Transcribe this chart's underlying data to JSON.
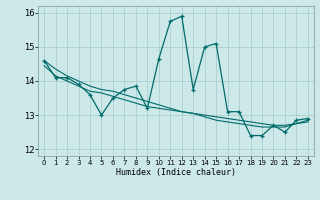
{
  "xlabel": "Humidex (Indice chaleur)",
  "bg_color": "#cce8e8",
  "grid_color": "#aacfcf",
  "line_color": "#006b6b",
  "xlim": [
    -0.5,
    23.5
  ],
  "ylim": [
    11.8,
    16.2
  ],
  "yticks": [
    12,
    13,
    14,
    15,
    16
  ],
  "xticks": [
    0,
    1,
    2,
    3,
    4,
    5,
    6,
    7,
    8,
    9,
    10,
    11,
    12,
    13,
    14,
    15,
    16,
    17,
    18,
    19,
    20,
    21,
    22,
    23
  ],
  "series1": [
    14.6,
    14.1,
    14.1,
    13.9,
    13.6,
    13.0,
    13.5,
    13.75,
    13.85,
    13.2,
    14.65,
    15.75,
    15.9,
    13.75,
    15.0,
    15.1,
    13.1,
    13.1,
    12.4,
    12.4,
    12.7,
    12.5,
    12.85,
    12.9
  ],
  "series2": [
    14.45,
    14.15,
    14.0,
    13.85,
    13.7,
    13.65,
    13.55,
    13.45,
    13.35,
    13.25,
    13.2,
    13.15,
    13.1,
    13.05,
    13.0,
    12.95,
    12.9,
    12.85,
    12.8,
    12.75,
    12.7,
    12.7,
    12.75,
    12.8
  ],
  "series3": [
    14.6,
    14.35,
    14.15,
    14.0,
    13.85,
    13.75,
    13.7,
    13.6,
    13.5,
    13.4,
    13.3,
    13.2,
    13.1,
    13.05,
    12.95,
    12.85,
    12.8,
    12.75,
    12.7,
    12.65,
    12.65,
    12.65,
    12.75,
    12.85
  ]
}
